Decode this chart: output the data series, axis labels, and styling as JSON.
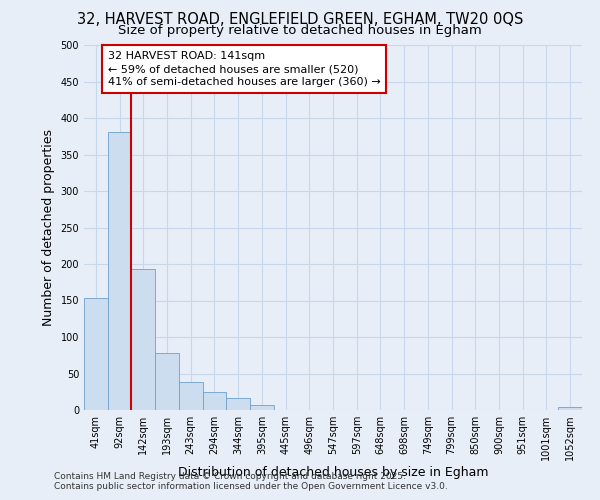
{
  "title_line1": "32, HARVEST ROAD, ENGLEFIELD GREEN, EGHAM, TW20 0QS",
  "title_line2": "Size of property relative to detached houses in Egham",
  "xlabel": "Distribution of detached houses by size in Egham",
  "ylabel": "Number of detached properties",
  "categories": [
    "41sqm",
    "92sqm",
    "142sqm",
    "193sqm",
    "243sqm",
    "294sqm",
    "344sqm",
    "395sqm",
    "445sqm",
    "496sqm",
    "547sqm",
    "597sqm",
    "648sqm",
    "698sqm",
    "749sqm",
    "799sqm",
    "850sqm",
    "900sqm",
    "951sqm",
    "1001sqm",
    "1052sqm"
  ],
  "values": [
    153,
    381,
    193,
    78,
    38,
    25,
    16,
    7,
    0,
    0,
    0,
    0,
    0,
    0,
    0,
    0,
    0,
    0,
    0,
    0,
    4
  ],
  "bar_color": "#ccddf0",
  "bar_edge_color": "#6ea0cc",
  "grid_color": "#c8d8ec",
  "background_color": "#e8eef8",
  "annotation_text": "32 HARVEST ROAD: 141sqm\n← 59% of detached houses are smaller (520)\n41% of semi-detached houses are larger (360) →",
  "annotation_box_color": "#ffffff",
  "annotation_box_edge": "#cc0000",
  "vline_color": "#cc0000",
  "vline_x": 1.5,
  "ylim": [
    0,
    500
  ],
  "yticks": [
    0,
    50,
    100,
    150,
    200,
    250,
    300,
    350,
    400,
    450,
    500
  ],
  "footer_line1": "Contains HM Land Registry data © Crown copyright and database right 2025.",
  "footer_line2": "Contains public sector information licensed under the Open Government Licence v3.0.",
  "title_fontsize": 10.5,
  "subtitle_fontsize": 9.5,
  "tick_fontsize": 7,
  "label_fontsize": 9,
  "footer_fontsize": 6.5,
  "annotation_fontsize": 8
}
